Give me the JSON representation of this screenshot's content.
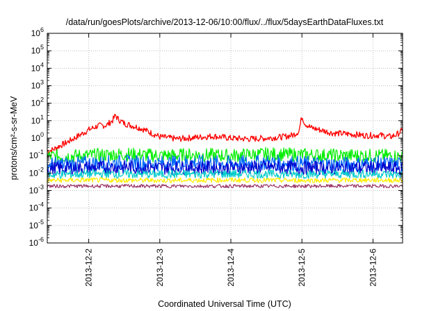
{
  "chart_data": {
    "type": "line",
    "title": "/data/run/goesPlots/archive/2013-12-06/10:00/flux/../flux/5daysEarthDataFluxes.txt",
    "xlabel": "Coordinated Universal Time (UTC)",
    "ylabel": "protons/cm²-s-sr-MeV",
    "x_scale": "time",
    "y_scale": "log",
    "xlim": [
      "2013-12-01T10:00",
      "2013-12-06T10:00"
    ],
    "ylim": [
      1e-06,
      1000000.0
    ],
    "grid": true,
    "x_ticks": [
      "2013-12-2",
      "2013-12-3",
      "2013-12-4",
      "2013-12-5",
      "2013-12-6"
    ],
    "y_ticks": [
      {
        "value": 1e-06,
        "base": "10",
        "exp": "-6"
      },
      {
        "value": 1e-05,
        "base": "10",
        "exp": "-5"
      },
      {
        "value": 0.0001,
        "base": "10",
        "exp": "-4"
      },
      {
        "value": 0.001,
        "base": "10",
        "exp": "-3"
      },
      {
        "value": 0.01,
        "base": "10",
        "exp": "-2"
      },
      {
        "value": 0.1,
        "base": "10",
        "exp": "-1"
      },
      {
        "value": 1,
        "base": "10",
        "exp": "0"
      },
      {
        "value": 10,
        "base": "10",
        "exp": "1"
      },
      {
        "value": 100,
        "base": "10",
        "exp": "2"
      },
      {
        "value": 1000,
        "base": "10",
        "exp": "3"
      },
      {
        "value": 10000,
        "base": "10",
        "exp": "4"
      },
      {
        "value": 100000,
        "base": "10",
        "exp": "5"
      },
      {
        "value": 1000000,
        "base": "10",
        "exp": "6"
      }
    ],
    "series": [
      {
        "color": "#ff0000",
        "points": [
          [
            "2013-12-01T10:00",
            0.18
          ],
          [
            "2013-12-01T12:00",
            0.22
          ],
          [
            "2013-12-01T14:00",
            0.35
          ],
          [
            "2013-12-01T16:00",
            0.5
          ],
          [
            "2013-12-01T20:00",
            1.2
          ],
          [
            "2013-12-02T00:00",
            3.0
          ],
          [
            "2013-12-02T03:00",
            5.0
          ],
          [
            "2013-12-02T06:00",
            5.5
          ],
          [
            "2013-12-02T08:00",
            10.0
          ],
          [
            "2013-12-02T09:00",
            20.0
          ],
          [
            "2013-12-02T10:00",
            12.0
          ],
          [
            "2013-12-02T12:00",
            7.0
          ],
          [
            "2013-12-02T15:00",
            5.0
          ],
          [
            "2013-12-02T18:00",
            3.5
          ],
          [
            "2013-12-02T21:00",
            2.0
          ],
          [
            "2013-12-03T00:00",
            1.2
          ],
          [
            "2013-12-03T06:00",
            0.9
          ],
          [
            "2013-12-03T12:00",
            1.1
          ],
          [
            "2013-12-03T18:00",
            1.3
          ],
          [
            "2013-12-04T00:00",
            1.0
          ],
          [
            "2013-12-04T06:00",
            0.9
          ],
          [
            "2013-12-04T12:00",
            1.0
          ],
          [
            "2013-12-04T18:00",
            1.2
          ],
          [
            "2013-12-04T21:00",
            1.5
          ],
          [
            "2013-12-04T23:00",
            2.5
          ],
          [
            "2013-12-05T00:00",
            18.0
          ],
          [
            "2013-12-05T01:00",
            7.0
          ],
          [
            "2013-12-05T03:00",
            4.0
          ],
          [
            "2013-12-05T06:00",
            3.0
          ],
          [
            "2013-12-05T10:00",
            2.0
          ],
          [
            "2013-12-05T14:00",
            1.8
          ],
          [
            "2013-12-05T18:00",
            1.6
          ],
          [
            "2013-12-05T22:00",
            1.4
          ],
          [
            "2013-12-06T02:00",
            1.5
          ],
          [
            "2013-12-06T06:00",
            1.2
          ],
          [
            "2013-12-06T08:00",
            1.6
          ],
          [
            "2013-12-06T10:00",
            2.8
          ]
        ]
      },
      {
        "color": "#00ee00",
        "points": [
          [
            "2013-12-01T10:00",
            0.09
          ],
          [
            "2013-12-02T00:00",
            0.1
          ],
          [
            "2013-12-02T12:00",
            0.12
          ],
          [
            "2013-12-03T00:00",
            0.1
          ],
          [
            "2013-12-03T12:00",
            0.11
          ],
          [
            "2013-12-04T00:00",
            0.1
          ],
          [
            "2013-12-04T12:00",
            0.12
          ],
          [
            "2013-12-05T00:00",
            0.11
          ],
          [
            "2013-12-05T12:00",
            0.1
          ],
          [
            "2013-12-06T00:00",
            0.1
          ],
          [
            "2013-12-06T10:00",
            0.09
          ]
        ]
      },
      {
        "color": "#0066ff",
        "points": [
          [
            "2013-12-01T10:00",
            0.03
          ],
          [
            "2013-12-02T00:00",
            0.035
          ],
          [
            "2013-12-02T12:00",
            0.04
          ],
          [
            "2013-12-03T00:00",
            0.035
          ],
          [
            "2013-12-03T12:00",
            0.04
          ],
          [
            "2013-12-04T00:00",
            0.035
          ],
          [
            "2013-12-04T12:00",
            0.04
          ],
          [
            "2013-12-05T00:00",
            0.035
          ],
          [
            "2013-12-05T12:00",
            0.03
          ],
          [
            "2013-12-06T00:00",
            0.035
          ],
          [
            "2013-12-06T10:00",
            0.03
          ]
        ]
      },
      {
        "color": "#0000cc",
        "points": [
          [
            "2013-12-01T10:00",
            0.018
          ],
          [
            "2013-12-02T00:00",
            0.02
          ],
          [
            "2013-12-02T12:00",
            0.022
          ],
          [
            "2013-12-03T00:00",
            0.02
          ],
          [
            "2013-12-03T12:00",
            0.021
          ],
          [
            "2013-12-04T00:00",
            0.02
          ],
          [
            "2013-12-04T12:00",
            0.022
          ],
          [
            "2013-12-05T00:00",
            0.02
          ],
          [
            "2013-12-05T12:00",
            0.019
          ],
          [
            "2013-12-06T00:00",
            0.02
          ],
          [
            "2013-12-06T10:00",
            0.018
          ]
        ]
      },
      {
        "color": "#00cccc",
        "points": [
          [
            "2013-12-01T10:00",
            0.008
          ],
          [
            "2013-12-02T00:00",
            0.009
          ],
          [
            "2013-12-03T00:00",
            0.0085
          ],
          [
            "2013-12-04T00:00",
            0.009
          ],
          [
            "2013-12-05T00:00",
            0.0085
          ],
          [
            "2013-12-06T00:00",
            0.009
          ],
          [
            "2013-12-06T10:00",
            0.008
          ]
        ]
      },
      {
        "color": "#ffee00",
        "points": [
          [
            "2013-12-01T10:00",
            0.0038
          ],
          [
            "2013-12-02T00:00",
            0.004
          ],
          [
            "2013-12-03T00:00",
            0.0038
          ],
          [
            "2013-12-04T00:00",
            0.004
          ],
          [
            "2013-12-05T00:00",
            0.0038
          ],
          [
            "2013-12-06T00:00",
            0.004
          ],
          [
            "2013-12-06T10:00",
            0.0038
          ]
        ]
      },
      {
        "color": "#993366",
        "points": [
          [
            "2013-12-01T10:00",
            0.0018
          ],
          [
            "2013-12-02T00:00",
            0.0018
          ],
          [
            "2013-12-03T00:00",
            0.0018
          ],
          [
            "2013-12-04T00:00",
            0.0018
          ],
          [
            "2013-12-05T00:00",
            0.0018
          ],
          [
            "2013-12-06T00:00",
            0.0018
          ],
          [
            "2013-12-06T10:00",
            0.0018
          ]
        ]
      }
    ]
  }
}
